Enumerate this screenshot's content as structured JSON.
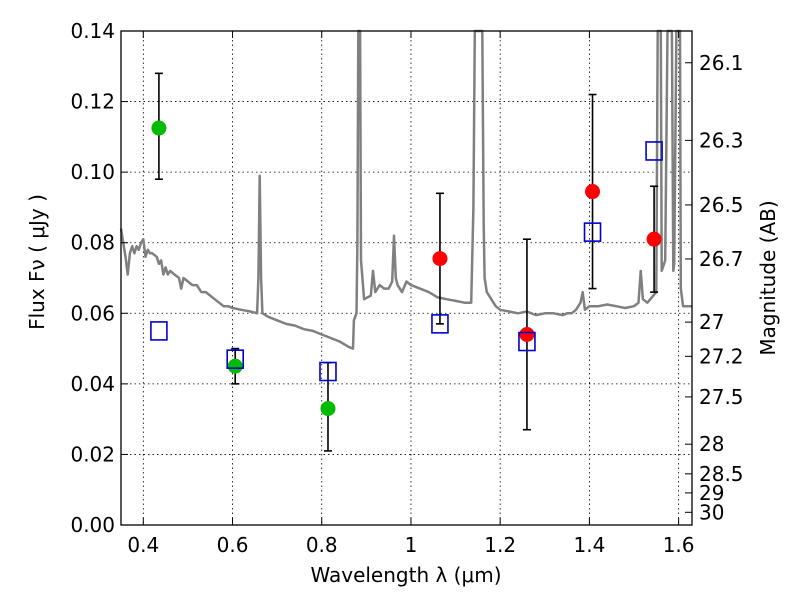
{
  "chart_data": {
    "type": "scatter",
    "xlabel": "Wavelength  λ (μm)",
    "ylabel": "Flux  Fν  ( μJy )",
    "y2label": "Magnitude (AB)",
    "xlim": [
      0.35,
      1.63
    ],
    "ylim": [
      0.0,
      0.14
    ],
    "grid": true,
    "x_ticks": [
      0.4,
      0.6,
      0.8,
      1.0,
      1.2,
      1.4,
      1.6
    ],
    "x_tick_labels": [
      "0.4",
      "0.6",
      "0.8",
      "1",
      "1.2",
      "1.4",
      "1.6"
    ],
    "y_ticks": [
      0.0,
      0.02,
      0.04,
      0.06,
      0.08,
      0.1,
      0.12,
      0.14
    ],
    "y_tick_labels": [
      "0.00",
      "0.02",
      "0.04",
      "0.06",
      "0.08",
      "0.10",
      "0.12",
      "0.14"
    ],
    "y2_ticks": [
      {
        "label": "26.1",
        "flux": 0.131
      },
      {
        "label": "26.3",
        "flux": 0.109
      },
      {
        "label": "26.5",
        "flux": 0.0907
      },
      {
        "label": "26.7",
        "flux": 0.0754
      },
      {
        "label": "27",
        "flux": 0.0575
      },
      {
        "label": "27.2",
        "flux": 0.0478
      },
      {
        "label": "27.5",
        "flux": 0.0363
      },
      {
        "label": "28",
        "flux": 0.0229
      },
      {
        "label": "28.5",
        "flux": 0.0145
      },
      {
        "label": "29",
        "flux": 0.0091
      },
      {
        "label": "30",
        "flux": 0.0036
      }
    ],
    "series": [
      {
        "marker": "circle",
        "color": "#00bb00",
        "points": [
          {
            "x": 0.435,
            "y": 0.1125,
            "ylo": 0.098,
            "yhi": 0.128
          },
          {
            "x": 0.606,
            "y": 0.045,
            "ylo": 0.04,
            "yhi": 0.05
          },
          {
            "x": 0.814,
            "y": 0.033,
            "ylo": 0.021,
            "yhi": 0.046
          }
        ]
      },
      {
        "marker": "circle",
        "color": "#ff0000",
        "points": [
          {
            "x": 1.065,
            "y": 0.0755,
            "ylo": 0.057,
            "yhi": 0.094
          },
          {
            "x": 1.26,
            "y": 0.054,
            "ylo": 0.027,
            "yhi": 0.081
          },
          {
            "x": 1.407,
            "y": 0.0945,
            "ylo": 0.067,
            "yhi": 0.122
          },
          {
            "x": 1.545,
            "y": 0.081,
            "ylo": 0.066,
            "yhi": 0.096
          }
        ]
      },
      {
        "marker": "square",
        "color": "#0000cc",
        "points": [
          {
            "x": 0.435,
            "y": 0.055
          },
          {
            "x": 0.606,
            "y": 0.047
          },
          {
            "x": 0.814,
            "y": 0.0435
          },
          {
            "x": 1.065,
            "y": 0.057
          },
          {
            "x": 1.26,
            "y": 0.052
          },
          {
            "x": 1.407,
            "y": 0.083
          },
          {
            "x": 1.545,
            "y": 0.106
          }
        ]
      }
    ],
    "model_spectrum": {
      "color": "#808080",
      "points": [
        [
          0.35,
          0.084
        ],
        [
          0.36,
          0.076
        ],
        [
          0.365,
          0.071
        ],
        [
          0.37,
          0.077
        ],
        [
          0.375,
          0.079
        ],
        [
          0.38,
          0.077
        ],
        [
          0.385,
          0.079
        ],
        [
          0.39,
          0.078
        ],
        [
          0.395,
          0.08
        ],
        [
          0.4,
          0.081
        ],
        [
          0.405,
          0.076
        ],
        [
          0.41,
          0.078
        ],
        [
          0.415,
          0.077
        ],
        [
          0.42,
          0.077
        ],
        [
          0.43,
          0.076
        ],
        [
          0.435,
          0.074
        ],
        [
          0.44,
          0.075
        ],
        [
          0.445,
          0.071
        ],
        [
          0.45,
          0.073
        ],
        [
          0.455,
          0.071
        ],
        [
          0.46,
          0.072
        ],
        [
          0.47,
          0.071
        ],
        [
          0.48,
          0.07
        ],
        [
          0.485,
          0.067
        ],
        [
          0.49,
          0.07
        ],
        [
          0.5,
          0.069
        ],
        [
          0.51,
          0.068
        ],
        [
          0.52,
          0.068
        ],
        [
          0.53,
          0.066
        ],
        [
          0.54,
          0.066
        ],
        [
          0.55,
          0.065
        ],
        [
          0.56,
          0.064
        ],
        [
          0.57,
          0.063
        ],
        [
          0.58,
          0.062
        ],
        [
          0.59,
          0.062
        ],
        [
          0.6,
          0.0615
        ],
        [
          0.62,
          0.061
        ],
        [
          0.64,
          0.0605
        ],
        [
          0.655,
          0.06
        ],
        [
          0.658,
          0.07
        ],
        [
          0.661,
          0.099
        ],
        [
          0.664,
          0.07
        ],
        [
          0.667,
          0.06
        ],
        [
          0.68,
          0.059
        ],
        [
          0.7,
          0.058
        ],
        [
          0.72,
          0.057
        ],
        [
          0.74,
          0.0565
        ],
        [
          0.76,
          0.0555
        ],
        [
          0.78,
          0.055
        ],
        [
          0.8,
          0.054
        ],
        [
          0.82,
          0.053
        ],
        [
          0.84,
          0.052
        ],
        [
          0.86,
          0.0505
        ],
        [
          0.87,
          0.05
        ],
        [
          0.872,
          0.058
        ],
        [
          0.875,
          0.059
        ],
        [
          0.878,
          0.06
        ],
        [
          0.88,
          0.08
        ],
        [
          0.882,
          0.14
        ],
        [
          0.886,
          0.14
        ],
        [
          0.888,
          0.075
        ],
        [
          0.895,
          0.064
        ],
        [
          0.91,
          0.065
        ],
        [
          0.915,
          0.072
        ],
        [
          0.92,
          0.066
        ],
        [
          0.93,
          0.068
        ],
        [
          0.94,
          0.067
        ],
        [
          0.95,
          0.067
        ],
        [
          0.958,
          0.069
        ],
        [
          0.962,
          0.082
        ],
        [
          0.966,
          0.07
        ],
        [
          0.97,
          0.068
        ],
        [
          0.98,
          0.066
        ],
        [
          0.99,
          0.069
        ],
        [
          1.0,
          0.068
        ],
        [
          1.02,
          0.067
        ],
        [
          1.04,
          0.066
        ],
        [
          1.06,
          0.0645
        ],
        [
          1.08,
          0.064
        ],
        [
          1.1,
          0.0635
        ],
        [
          1.12,
          0.063
        ],
        [
          1.135,
          0.063
        ],
        [
          1.14,
          0.09
        ],
        [
          1.143,
          0.14
        ],
        [
          1.16,
          0.14
        ],
        [
          1.163,
          0.085
        ],
        [
          1.165,
          0.07
        ],
        [
          1.17,
          0.066
        ],
        [
          1.19,
          0.062
        ],
        [
          1.2,
          0.061
        ],
        [
          1.22,
          0.0605
        ],
        [
          1.24,
          0.06
        ],
        [
          1.26,
          0.0605
        ],
        [
          1.28,
          0.0595
        ],
        [
          1.3,
          0.06
        ],
        [
          1.32,
          0.06
        ],
        [
          1.34,
          0.0595
        ],
        [
          1.35,
          0.06
        ],
        [
          1.36,
          0.06
        ],
        [
          1.37,
          0.061
        ],
        [
          1.38,
          0.063
        ],
        [
          1.385,
          0.066
        ],
        [
          1.39,
          0.061
        ],
        [
          1.4,
          0.062
        ],
        [
          1.42,
          0.062
        ],
        [
          1.44,
          0.0625
        ],
        [
          1.46,
          0.062
        ],
        [
          1.48,
          0.0615
        ],
        [
          1.5,
          0.062
        ],
        [
          1.51,
          0.063
        ],
        [
          1.515,
          0.072
        ],
        [
          1.52,
          0.064
        ],
        [
          1.53,
          0.063
        ],
        [
          1.55,
          0.066
        ],
        [
          1.553,
          0.14
        ],
        [
          1.56,
          0.14
        ],
        [
          1.562,
          0.072
        ],
        [
          1.57,
          0.075
        ],
        [
          1.575,
          0.14
        ],
        [
          1.585,
          0.14
        ],
        [
          1.588,
          0.072
        ],
        [
          1.59,
          0.074
        ],
        [
          1.595,
          0.14
        ],
        [
          1.603,
          0.14
        ],
        [
          1.605,
          0.067
        ],
        [
          1.61,
          0.062
        ],
        [
          1.62,
          0.062
        ],
        [
          1.63,
          0.062
        ]
      ]
    }
  }
}
